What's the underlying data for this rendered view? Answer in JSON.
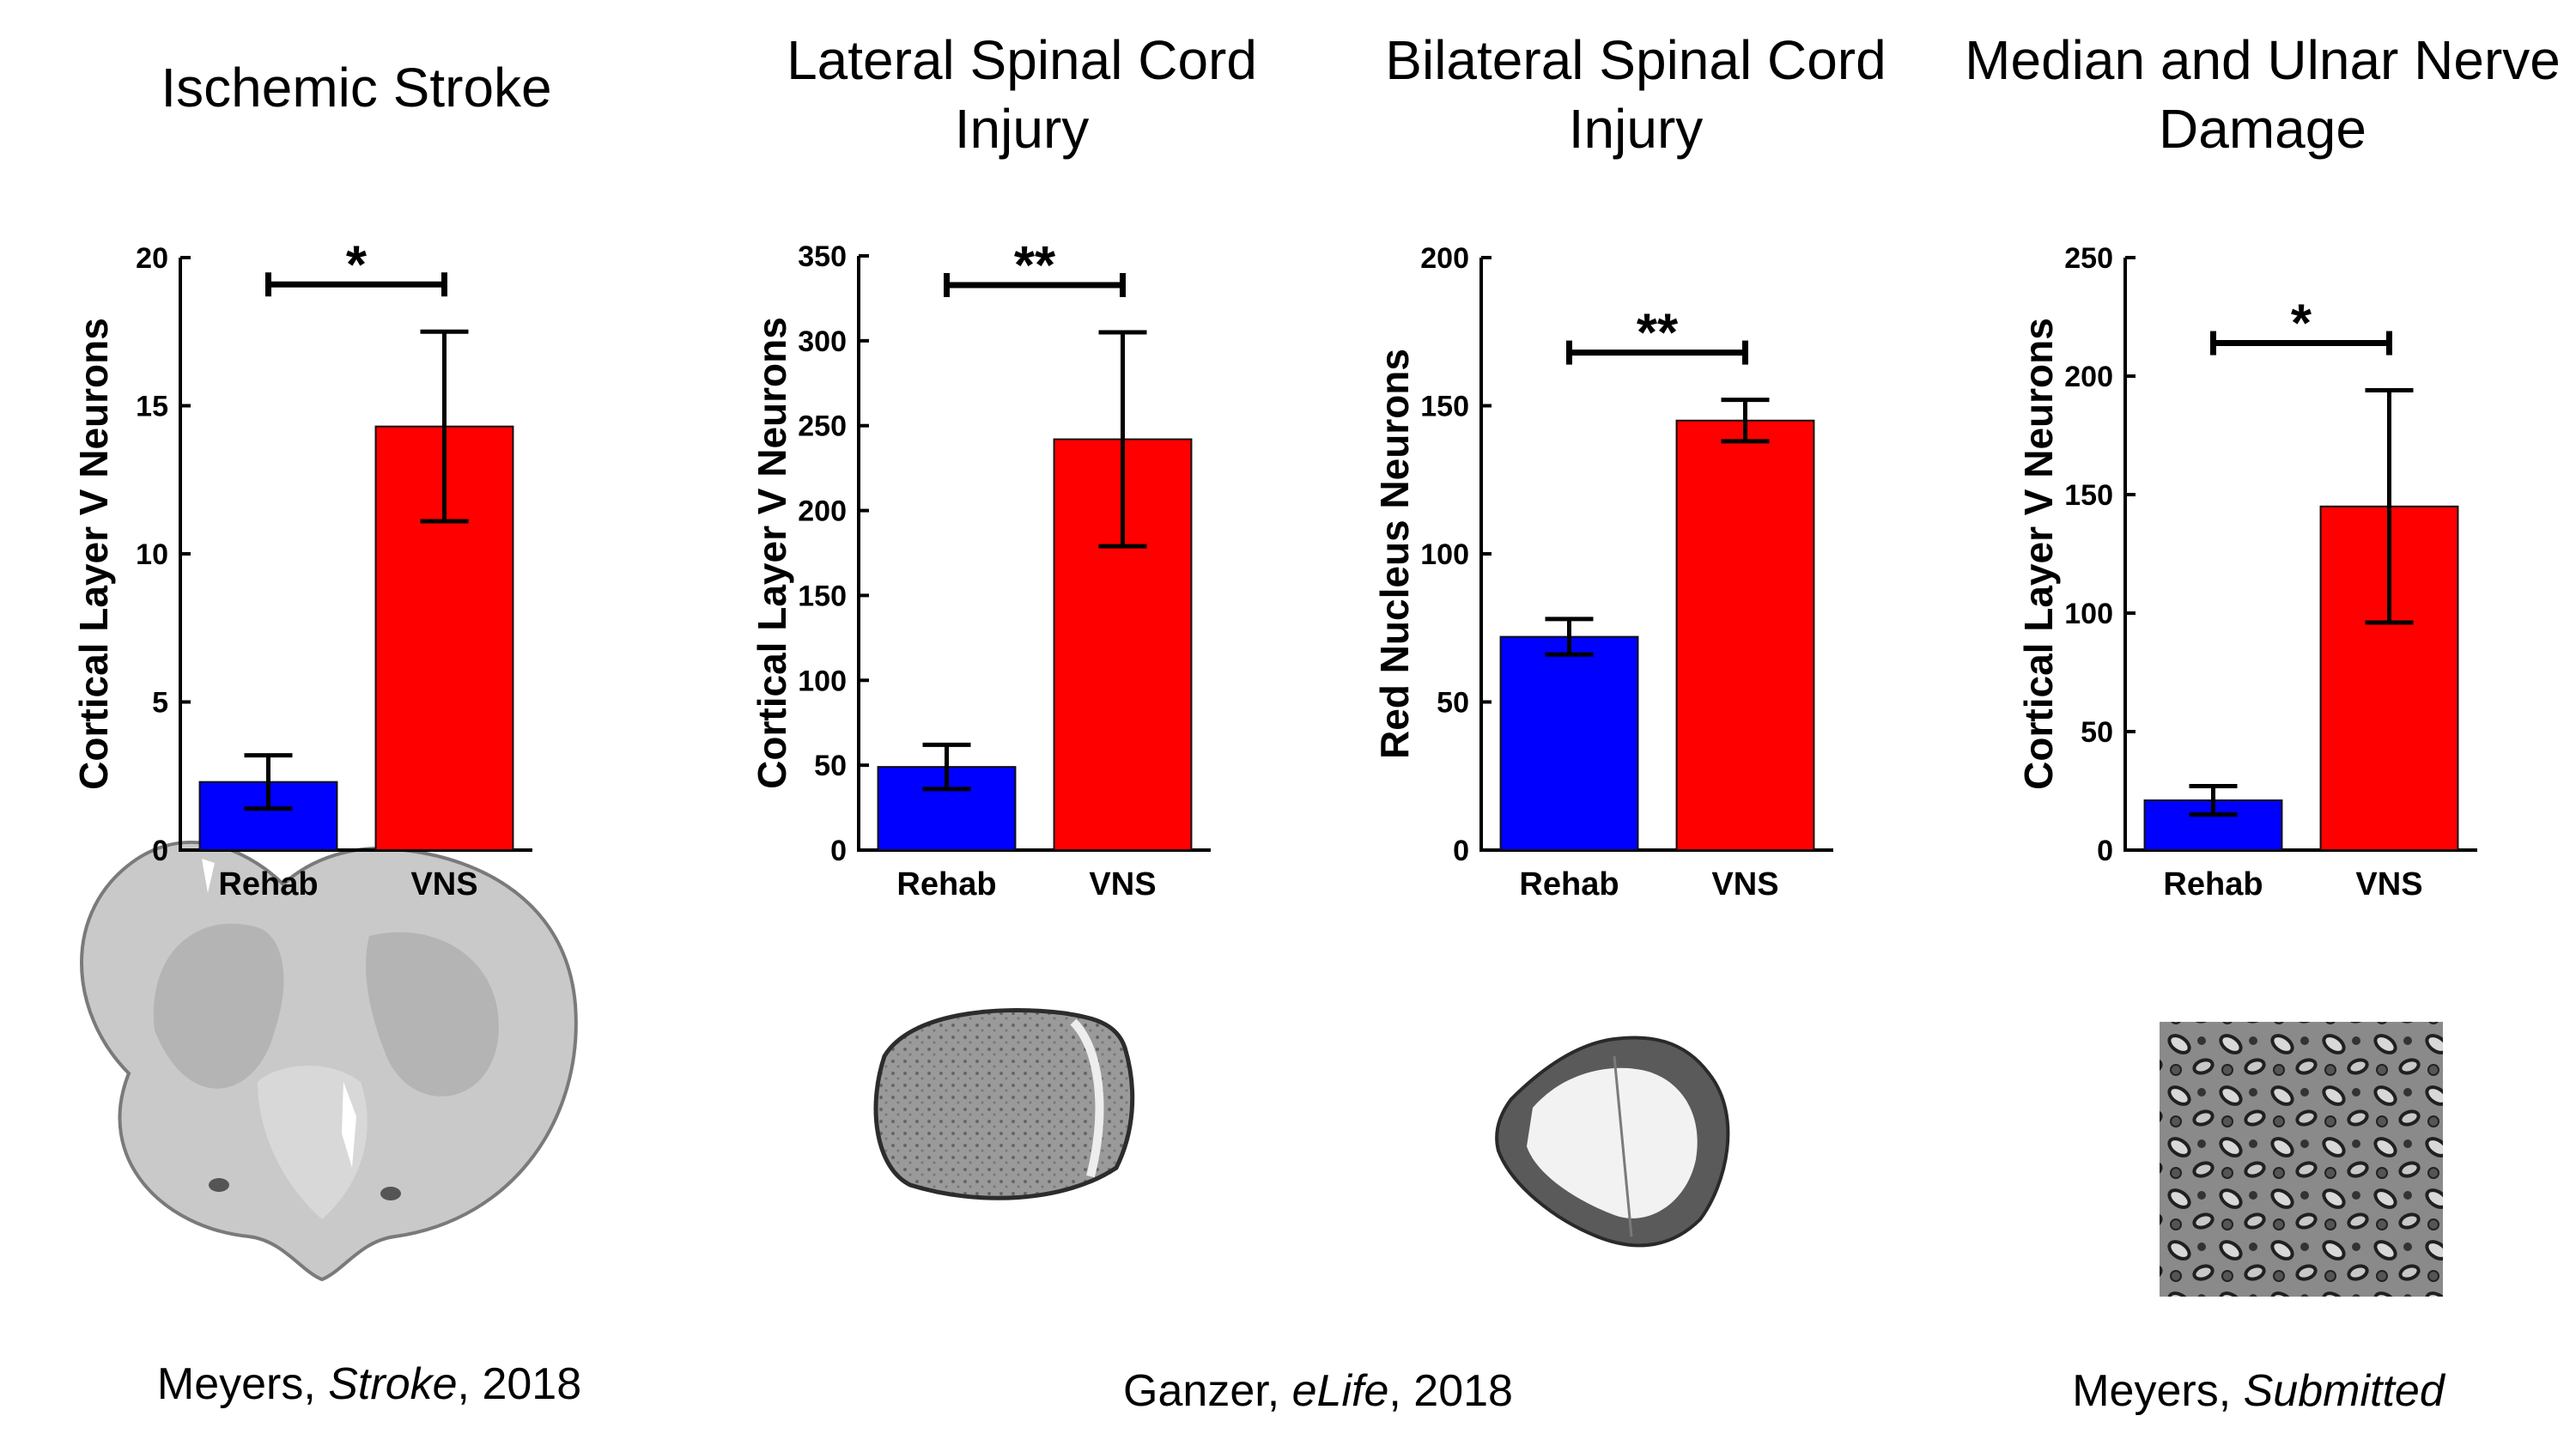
{
  "chart_data": [
    {
      "type": "bar",
      "title": "Ischemic Stroke",
      "categories": [
        "Rehab",
        "VNS"
      ],
      "values": [
        2.3,
        14.3
      ],
      "error": [
        0.9,
        3.2
      ],
      "colors": [
        "#0000ff",
        "#ff0000"
      ],
      "ylabel": "Cortical Layer V Neurons",
      "ylim": [
        0,
        20
      ],
      "yticks": [
        0,
        5,
        10,
        15,
        20
      ],
      "significance": "*",
      "image": "coronal brain section",
      "citation": {
        "author": "Meyers, ",
        "journal": "Stroke",
        "year": ", 2018"
      }
    },
    {
      "type": "bar",
      "title": "Lateral Spinal Cord Injury",
      "categories": [
        "Rehab",
        "VNS"
      ],
      "values": [
        49,
        242
      ],
      "error": [
        13,
        63
      ],
      "colors": [
        "#0000ff",
        "#ff0000"
      ],
      "ylabel": "Cortical Layer V Neurons",
      "ylim": [
        0,
        350
      ],
      "yticks": [
        0,
        50,
        100,
        150,
        200,
        250,
        300,
        350
      ],
      "significance": "**",
      "image": "spinal cord section (lateral injury)"
    },
    {
      "type": "bar",
      "title": "Bilateral Spinal Cord Injury",
      "categories": [
        "Rehab",
        "VNS"
      ],
      "values": [
        72,
        145
      ],
      "error": [
        6,
        7
      ],
      "colors": [
        "#0000ff",
        "#ff0000"
      ],
      "ylabel": "Red Nucleus Neurons",
      "ylim": [
        0,
        200
      ],
      "yticks": [
        0,
        50,
        100,
        150,
        200
      ],
      "significance": "**",
      "image": "spinal cord section (bilateral injury)"
    },
    {
      "type": "bar",
      "title": "Median and Ulnar Nerve Damage",
      "categories": [
        "Rehab",
        "VNS"
      ],
      "values": [
        21,
        145
      ],
      "error": [
        6,
        49
      ],
      "colors": [
        "#0000ff",
        "#ff0000"
      ],
      "ylabel": "Cortical Layer V Neurons",
      "ylim": [
        0,
        250
      ],
      "yticks": [
        0,
        50,
        100,
        150,
        200,
        250
      ],
      "significance": "*",
      "image": "nerve cross-section micrograph",
      "citation": {
        "author": "Meyers, ",
        "journal": "Submitted",
        "year": ""
      }
    }
  ],
  "shared_citation": {
    "author": "Ganzer, ",
    "journal": "eLife",
    "year": ", 2018"
  }
}
